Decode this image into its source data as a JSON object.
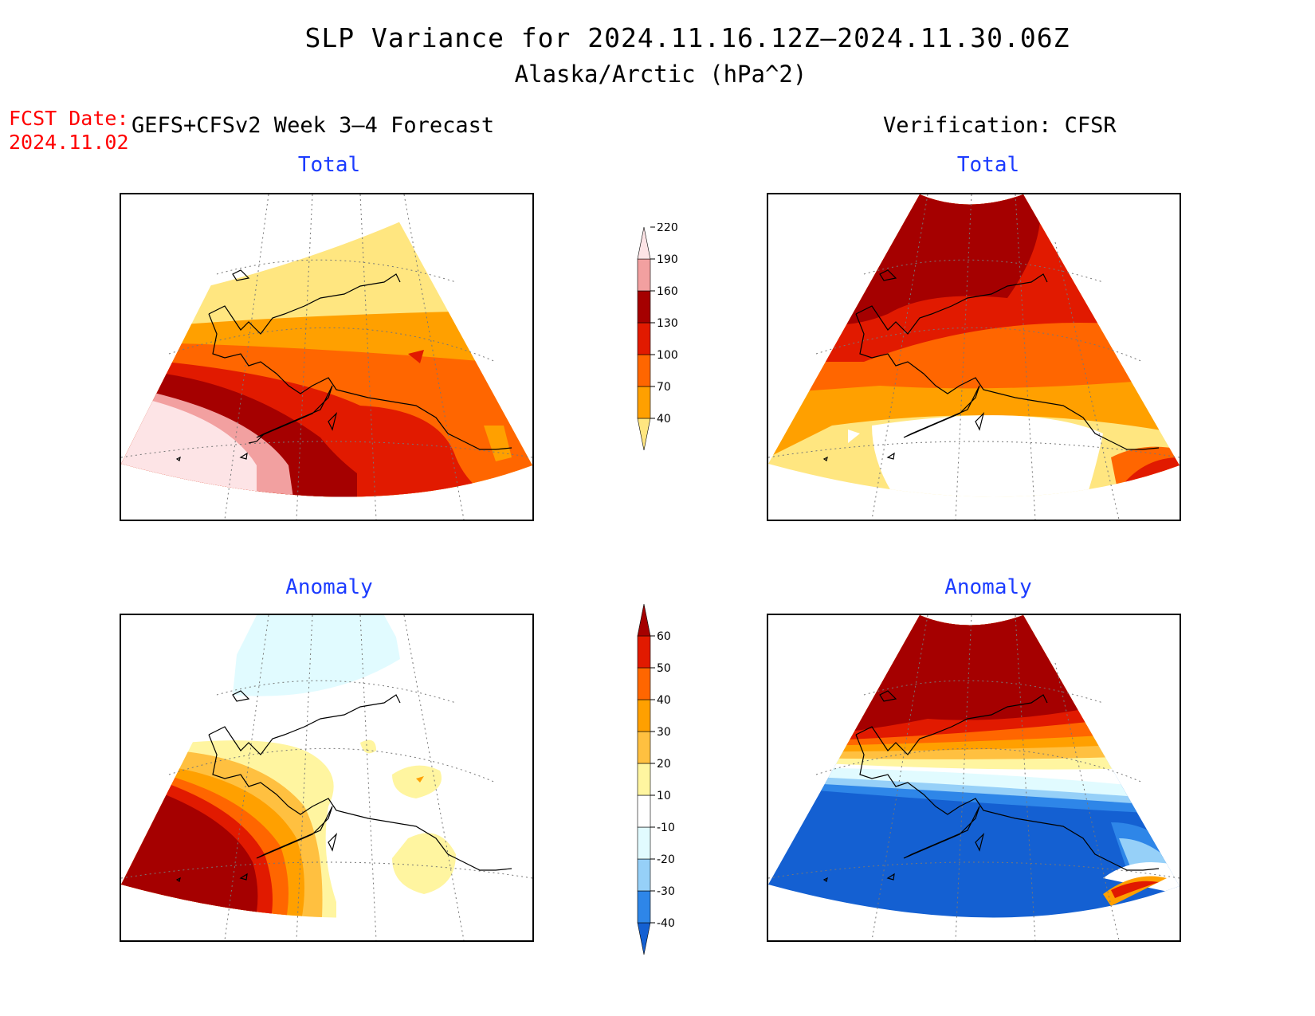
{
  "title": "SLP Variance for 2024.11.16.12Z–2024.11.30.06Z",
  "subtitle": "Alaska/Arctic (hPa^2)",
  "fcst_date_label": "FCST Date:",
  "fcst_date_value": "2024.11.02",
  "left_header": "GEFS+CFSv2 Week 3–4 Forecast",
  "right_header": "Verification: CFSR",
  "panels": {
    "tl": "Total",
    "tr": "Total",
    "bl": "Anomaly",
    "br": "Anomaly"
  },
  "total_colorbar": {
    "levels": [
      "40",
      "70",
      "100",
      "130",
      "160",
      "190",
      "220"
    ],
    "colors": [
      "#ffe680",
      "#ffa000",
      "#ff6600",
      "#e11a00",
      "#a50000",
      "#f2a0a0",
      "#fde4e6"
    ]
  },
  "anomaly_colorbar": {
    "levels": [
      "-40",
      "-30",
      "-20",
      "-10",
      "10",
      "20",
      "30",
      "40",
      "50",
      "60"
    ],
    "colors": [
      "#1460d2",
      "#2e86e8",
      "#96d0f8",
      "#e1fbff",
      "#ffffff",
      "#fff5a0",
      "#ffc040",
      "#ffa000",
      "#ff6600",
      "#e11a00",
      "#a50000"
    ]
  }
}
